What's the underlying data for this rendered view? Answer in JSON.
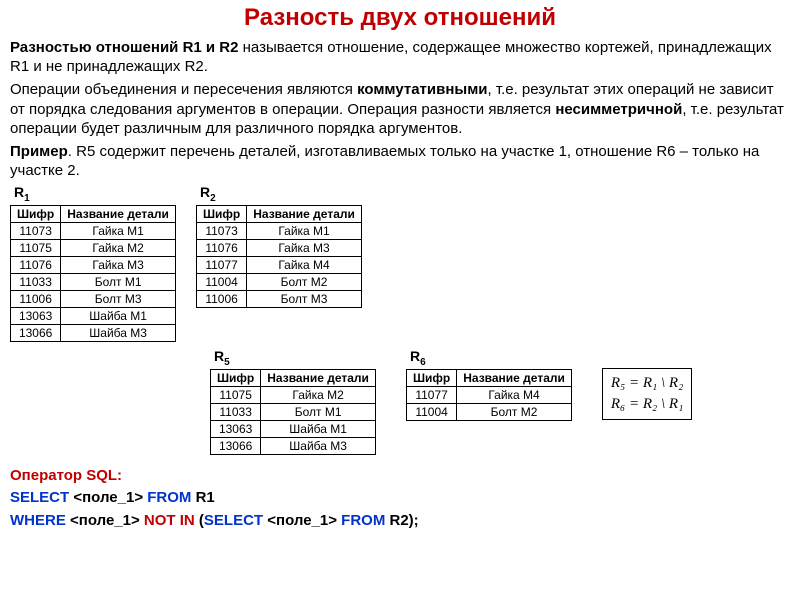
{
  "title": "Разность двух отношений",
  "title_color": "#c00000",
  "para1_a": "Разностью отношений R1 и R2",
  "para1_b": " называется отношение, содержащее множество кортежей, принадлежащих R1 и не принадлежащих R2.",
  "para2_a": "Операции объединения и пересечения являются ",
  "para2_b": "коммутативными",
  "para2_c": ", т.е. результат этих операций не зависит от порядка следования аргументов в операции. Операция разности является ",
  "para2_d": "несимметричной",
  "para2_e": ", т.е. результат операции будет различным для различного порядка аргументов.",
  "para3_a": "Пример",
  "para3_b": ". R5 содержит перечень деталей, изготавливаемых только на участке 1, отношение R6 – только на участке 2.",
  "tables": {
    "headers": [
      "Шифр",
      "Название детали"
    ],
    "R1": {
      "label": "R",
      "sub": "1",
      "rows": [
        [
          "11073",
          "Гайка М1"
        ],
        [
          "11075",
          "Гайка М2"
        ],
        [
          "11076",
          "Гайка М3"
        ],
        [
          "11033",
          "Болт М1"
        ],
        [
          "11006",
          "Болт М3"
        ],
        [
          "13063",
          "Шайба М1"
        ],
        [
          "13066",
          "Шайба М3"
        ]
      ]
    },
    "R2": {
      "label": "R",
      "sub": "2",
      "rows": [
        [
          "11073",
          "Гайка М1"
        ],
        [
          "11076",
          "Гайка М3"
        ],
        [
          "11077",
          "Гайка М4"
        ],
        [
          "11004",
          "Болт М2"
        ],
        [
          "11006",
          "Болт М3"
        ]
      ]
    },
    "R5": {
      "label": "R",
      "sub": "5",
      "rows": [
        [
          "11075",
          "Гайка М2"
        ],
        [
          "11033",
          "Болт М1"
        ],
        [
          "13063",
          "Шайба М1"
        ],
        [
          "13066",
          "Шайба М3"
        ]
      ]
    },
    "R6": {
      "label": "R",
      "sub": "6",
      "rows": [
        [
          "11077",
          "Гайка М4"
        ],
        [
          "11004",
          "Болт М2"
        ]
      ]
    }
  },
  "formula": {
    "line1": "R₅ = R₁ \\ R₂",
    "line2": "R₆ = R₂ \\ R₁"
  },
  "sql": {
    "label": "Оператор SQL:",
    "label_color": "#c00000",
    "kw_color": "#0033cc",
    "line1_select": "SELECT",
    "line1_field": " <поле_1> ",
    "line1_from": "FROM",
    "line1_r1": " R1",
    "line2_where": "WHERE",
    "line2_field": " <поле_1> ",
    "line2_notin": "NOT IN",
    "line2_open": " (",
    "line2_select": "SELECT",
    "line2_field2": " <поле_1> ",
    "line2_from": "FROM",
    "line2_r2": " R2);"
  }
}
